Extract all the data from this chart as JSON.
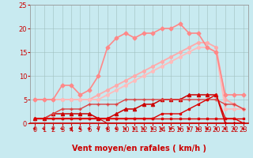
{
  "background_color": "#c8eaf0",
  "grid_color": "#9fbfbf",
  "xlabel": "Vent moyen/en rafales ( km/h )",
  "xlim": [
    -0.5,
    23.5
  ],
  "ylim": [
    0,
    25
  ],
  "xticks": [
    0,
    1,
    2,
    3,
    4,
    5,
    6,
    7,
    8,
    9,
    10,
    11,
    12,
    13,
    14,
    15,
    16,
    17,
    18,
    19,
    20,
    21,
    22,
    23
  ],
  "yticks": [
    0,
    5,
    10,
    15,
    20,
    25
  ],
  "lines": [
    {
      "x": [
        0,
        1,
        2,
        3,
        4,
        5,
        6,
        7,
        8,
        9,
        10,
        11,
        12,
        13,
        14,
        15,
        16,
        17,
        18,
        19,
        20,
        21,
        22,
        23
      ],
      "y": [
        1,
        1,
        1,
        1,
        1,
        1,
        1,
        1,
        1,
        1,
        1,
        1,
        1,
        1,
        1,
        1,
        1,
        1,
        1,
        1,
        1,
        1,
        1,
        1
      ],
      "color": "#dd0000",
      "linewidth": 1.0,
      "marker": "s",
      "markersize": 2.0,
      "zorder": 5
    },
    {
      "x": [
        0,
        1,
        2,
        3,
        4,
        5,
        6,
        7,
        8,
        9,
        10,
        11,
        12,
        13,
        14,
        15,
        16,
        17,
        18,
        19,
        20,
        21,
        22,
        23
      ],
      "y": [
        1,
        1,
        1,
        1,
        1,
        1,
        1,
        1,
        1,
        1,
        1,
        1,
        1,
        1,
        2,
        2,
        2,
        3,
        4,
        5,
        6,
        1,
        1,
        0
      ],
      "color": "#dd0000",
      "linewidth": 1.0,
      "marker": "s",
      "markersize": 2.0,
      "zorder": 5
    },
    {
      "x": [
        0,
        1,
        2,
        3,
        4,
        5,
        6,
        7,
        8,
        9,
        10,
        11,
        12,
        13,
        14,
        15,
        16,
        17,
        18,
        19,
        20,
        21,
        22,
        23
      ],
      "y": [
        1,
        1,
        2,
        2,
        2,
        2,
        2,
        1,
        1,
        2,
        3,
        3,
        4,
        4,
        5,
        5,
        5,
        6,
        6,
        6,
        6,
        0,
        0,
        0
      ],
      "color": "#cc0000",
      "linewidth": 1.1,
      "marker": "^",
      "markersize": 3.0,
      "zorder": 4
    },
    {
      "x": [
        0,
        1,
        2,
        3,
        4,
        5,
        6,
        7,
        8,
        9,
        10,
        11,
        12,
        13,
        14,
        15,
        16,
        17,
        18,
        19,
        20,
        21,
        22,
        23
      ],
      "y": [
        1,
        1,
        1,
        1,
        1,
        1,
        1,
        1,
        0,
        0,
        0,
        0,
        0,
        0,
        0,
        0,
        0,
        0,
        0,
        0,
        0,
        0,
        0,
        0
      ],
      "color": "#cc0000",
      "linewidth": 0.8,
      "marker": null,
      "markersize": 0,
      "zorder": 3
    },
    {
      "x": [
        0,
        1,
        2,
        3,
        4,
        5,
        6,
        7,
        8,
        9,
        10,
        11,
        12,
        13,
        14,
        15,
        16,
        17,
        18,
        19,
        20,
        21,
        22,
        23
      ],
      "y": [
        5,
        5,
        5,
        5,
        5,
        5,
        5,
        6,
        7,
        8,
        9,
        10,
        11,
        12,
        13,
        14,
        15,
        16,
        17,
        17,
        16,
        5,
        4,
        3
      ],
      "color": "#ffaaaa",
      "linewidth": 1.3,
      "marker": "o",
      "markersize": 2.5,
      "zorder": 2
    },
    {
      "x": [
        0,
        1,
        2,
        3,
        4,
        5,
        6,
        7,
        8,
        9,
        10,
        11,
        12,
        13,
        14,
        15,
        16,
        17,
        18,
        19,
        20,
        21,
        22,
        23
      ],
      "y": [
        5,
        5,
        5,
        5,
        5,
        5,
        5,
        5,
        6,
        7,
        8,
        9,
        10,
        11,
        12,
        13,
        14,
        15,
        16,
        16,
        15,
        3,
        3,
        3
      ],
      "color": "#ffbbbb",
      "linewidth": 1.3,
      "marker": "o",
      "markersize": 2.5,
      "zorder": 2
    },
    {
      "x": [
        0,
        1,
        2,
        3,
        4,
        5,
        6,
        7,
        8,
        9,
        10,
        11,
        12,
        13,
        14,
        15,
        16,
        17,
        18,
        19,
        20,
        21,
        22,
        23
      ],
      "y": [
        5,
        5,
        5,
        8,
        8,
        6,
        7,
        10,
        16,
        18,
        19,
        18,
        19,
        19,
        20,
        20,
        21,
        19,
        19,
        16,
        15,
        6,
        6,
        6
      ],
      "color": "#ff8888",
      "linewidth": 1.2,
      "marker": "D",
      "markersize": 2.5,
      "zorder": 2
    },
    {
      "x": [
        0,
        1,
        2,
        3,
        4,
        5,
        6,
        7,
        8,
        9,
        10,
        11,
        12,
        13,
        14,
        15,
        16,
        17,
        18,
        19,
        20,
        21,
        22,
        23
      ],
      "y": [
        1,
        1,
        2,
        3,
        3,
        3,
        4,
        4,
        4,
        4,
        5,
        5,
        5,
        5,
        5,
        5,
        5,
        5,
        5,
        5,
        5,
        4,
        4,
        3
      ],
      "color": "#dd4444",
      "linewidth": 1.0,
      "marker": "+",
      "markersize": 3.5,
      "zorder": 4
    }
  ],
  "arrow_color": "#cc0000",
  "tick_fontsize": 6,
  "axis_fontsize": 7,
  "label_fontweight": "bold"
}
